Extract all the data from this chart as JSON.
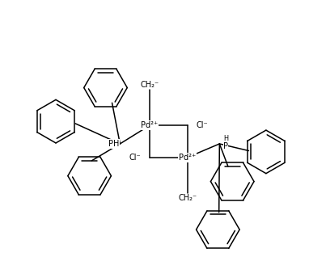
{
  "background_color": "#ffffff",
  "line_color": "#000000",
  "text_color": "#000000",
  "line_width": 1.1,
  "font_size": 7.0,
  "fig_width": 3.82,
  "fig_height": 3.44,
  "dpi": 100,
  "pd1_label": "Pd²⁺",
  "pd2_label": "Pd²⁺",
  "cl1_label": "Cl⁻",
  "cl2_label": "Cl⁻",
  "ch2_label": "CH₂⁻",
  "ph_label": "PH",
  "hp_label": "H\nP"
}
